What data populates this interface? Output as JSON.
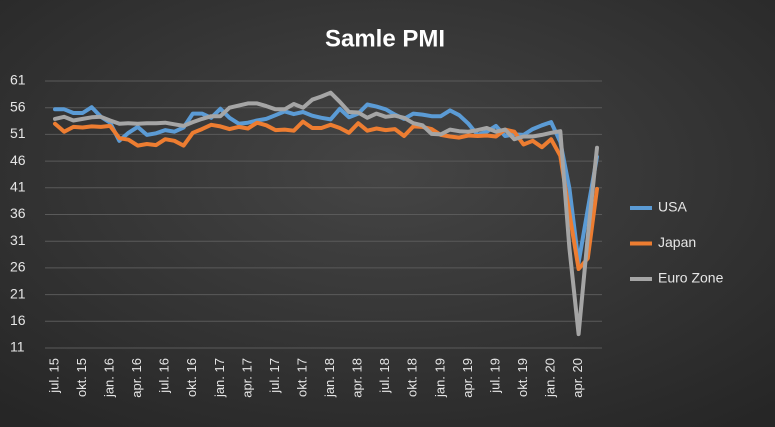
{
  "chart_data": {
    "type": "line",
    "title": "Samle PMI",
    "categories": [
      "jul. 15",
      null,
      null,
      "okt. 15",
      null,
      null,
      "jan. 16",
      null,
      null,
      "apr. 16",
      null,
      null,
      "jul. 16",
      null,
      null,
      "okt. 16",
      null,
      null,
      "jan. 17",
      null,
      null,
      "apr. 17",
      null,
      null,
      "jul. 17",
      null,
      null,
      "okt. 17",
      null,
      null,
      "jan. 18",
      null,
      null,
      "apr. 18",
      null,
      null,
      "jul. 18",
      null,
      null,
      "okt. 18",
      null,
      null,
      "jan. 19",
      null,
      null,
      "apr. 19",
      null,
      null,
      "jul. 19",
      null,
      null,
      "okt. 19",
      null,
      null,
      "jan. 20",
      null,
      null,
      "apr. 20",
      null,
      null
    ],
    "series": [
      {
        "name": "USA",
        "color": "#5b9bd5",
        "values": [
          55.7,
          55.7,
          55.0,
          55.0,
          56.1,
          54.3,
          53.2,
          49.8,
          51.3,
          52.4,
          50.9,
          51.2,
          51.8,
          51.5,
          52.3,
          54.9,
          54.9,
          54.1,
          55.8,
          54.1,
          53.0,
          53.2,
          53.6,
          53.9,
          54.6,
          55.3,
          54.8,
          55.2,
          54.5,
          54.1,
          53.8,
          55.8,
          54.2,
          54.9,
          56.6,
          56.2,
          55.7,
          54.7,
          53.9,
          54.9,
          54.7,
          54.4,
          54.4,
          55.5,
          54.6,
          53.0,
          50.9,
          51.5,
          52.6,
          50.7,
          51.0,
          50.9,
          52.0,
          52.7,
          53.3,
          49.6,
          40.9,
          27.0,
          37.0,
          46.8
        ]
      },
      {
        "name": "Japan",
        "color": "#ed7d31",
        "values": [
          53.0,
          51.5,
          52.4,
          52.3,
          52.5,
          52.4,
          52.6,
          50.3,
          50.0,
          48.9,
          49.2,
          49.0,
          50.1,
          49.8,
          48.9,
          51.3,
          52.0,
          52.8,
          52.5,
          52.0,
          52.4,
          52.1,
          53.2,
          52.7,
          51.8,
          51.9,
          51.7,
          53.4,
          52.2,
          52.2,
          52.8,
          52.2,
          51.3,
          53.1,
          51.7,
          52.1,
          51.8,
          52.0,
          50.7,
          52.5,
          52.4,
          52.0,
          50.9,
          50.6,
          50.4,
          50.8,
          50.7,
          50.8,
          50.6,
          51.9,
          51.5,
          49.1,
          49.8,
          48.6,
          50.1,
          47.0,
          36.2,
          25.8,
          27.8,
          40.8
        ]
      },
      {
        "name": "Euro Zone",
        "color": "#a5a5a5",
        "values": [
          53.9,
          54.3,
          53.6,
          53.9,
          54.2,
          54.3,
          53.6,
          53.0,
          53.1,
          53.0,
          53.1,
          53.1,
          53.2,
          52.9,
          52.6,
          53.3,
          53.9,
          54.4,
          54.4,
          56.0,
          56.4,
          56.8,
          56.8,
          56.3,
          55.7,
          55.7,
          56.7,
          56.0,
          57.5,
          58.1,
          58.8,
          57.1,
          55.2,
          55.1,
          54.1,
          54.9,
          54.3,
          54.5,
          54.1,
          53.1,
          52.7,
          51.1,
          51.0,
          51.9,
          51.6,
          51.5,
          51.8,
          52.2,
          51.5,
          51.9,
          50.1,
          50.6,
          50.6,
          50.9,
          51.3,
          51.6,
          29.7,
          13.6,
          31.9,
          48.5
        ]
      }
    ],
    "ylim": [
      11,
      61
    ],
    "yticks": [
      11,
      16,
      21,
      26,
      31,
      36,
      41,
      46,
      51,
      56,
      61
    ],
    "grid": true,
    "legend": "right"
  }
}
